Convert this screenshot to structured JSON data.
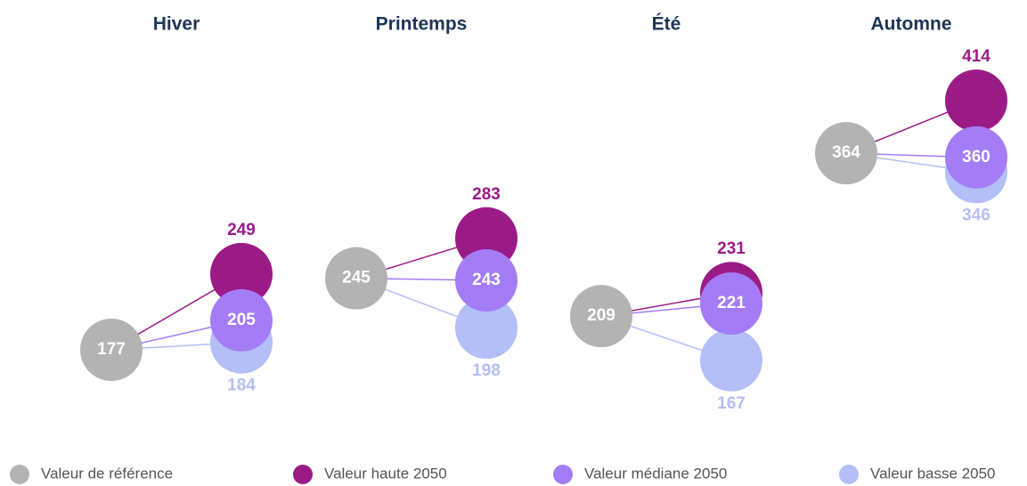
{
  "chart_data": {
    "type": "slope",
    "categories": [
      "Hiver",
      "Printemps",
      "Été",
      "Automne"
    ],
    "series": [
      {
        "name": "Valeur de référence",
        "color": "#b3b3b3",
        "values": [
          177,
          245,
          209,
          364
        ]
      },
      {
        "name": "Valeur haute 2050",
        "color": "#9b1b86",
        "values": [
          249,
          283,
          231,
          414
        ]
      },
      {
        "name": "Valeur médiane 2050",
        "color": "#a47cf6",
        "values": [
          205,
          243,
          221,
          360
        ]
      },
      {
        "name": "Valeur basse 2050",
        "color": "#b4bff7",
        "values": [
          184,
          198,
          167,
          346
        ]
      }
    ]
  }
}
